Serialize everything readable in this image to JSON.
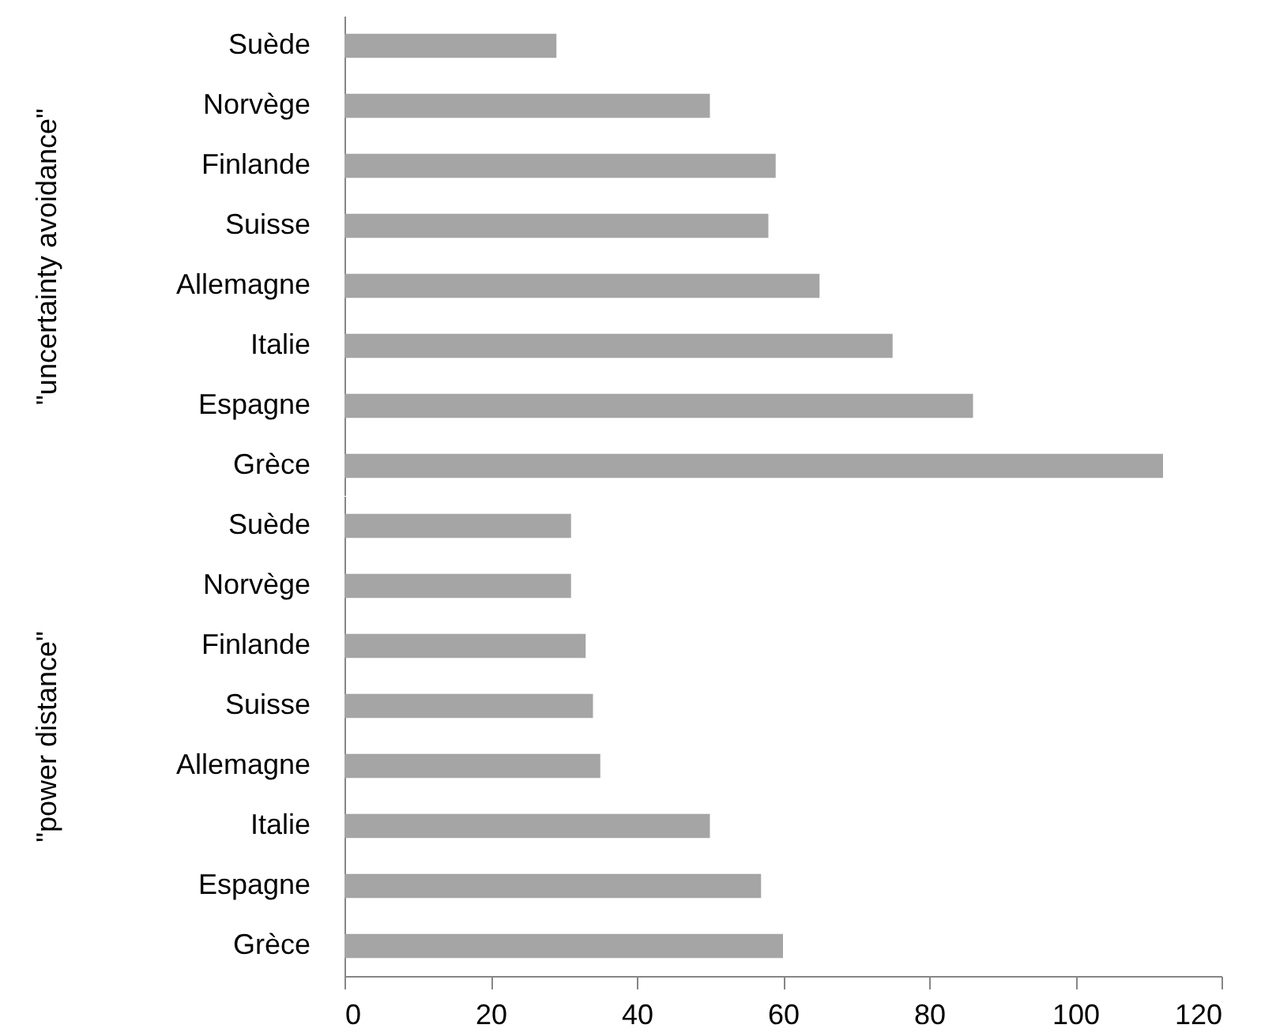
{
  "chart_data": [
    {
      "type": "bar",
      "orientation": "horizontal",
      "ylabel": "\"uncertainty avoidance\"",
      "categories": [
        "Suède",
        "Norvège",
        "Finlande",
        "Suisse",
        "Allemagne",
        "Italie",
        "Espagne",
        "Grèce"
      ],
      "values": [
        29,
        50,
        59,
        58,
        65,
        75,
        86,
        112
      ],
      "color": "#a5a5a5",
      "xlim": [
        0,
        120
      ],
      "xticks": [
        0,
        20,
        40,
        60,
        80,
        100,
        120
      ],
      "tick_labels": "y",
      "grid": false
    },
    {
      "type": "bar",
      "orientation": "horizontal",
      "ylabel": "\"power distance\"",
      "categories": [
        "Suède",
        "Norvège",
        "Finlande",
        "Suisse",
        "Allemagne",
        "Italie",
        "Espagne",
        "Grèce"
      ],
      "values": [
        31,
        31,
        33,
        34,
        35,
        50,
        57,
        60
      ],
      "color": "#a5a5a5",
      "xlim": [
        0,
        120
      ],
      "xticks": [
        0,
        20,
        40,
        60,
        80,
        100,
        120
      ],
      "grid": false
    }
  ]
}
